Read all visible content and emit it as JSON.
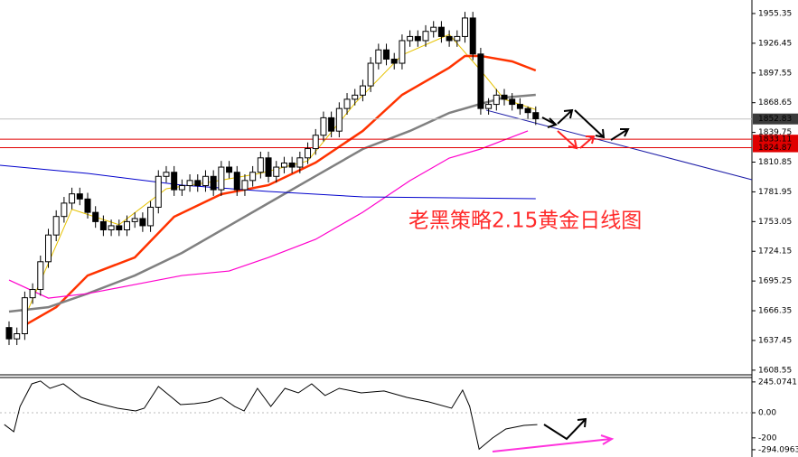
{
  "chart_data": [
    {
      "type": "candlestick",
      "xlim": [
        -1.15,
        94.5
      ],
      "ylim": [
        1605.8,
        1968.5
      ],
      "yticks": [
        1955.35,
        1926.45,
        1897.55,
        1868.65,
        1839.75,
        1810.85,
        1781.95,
        1753.05,
        1724.15,
        1695.25,
        1666.35,
        1637.45,
        1608.55
      ],
      "up_color": "#ffffff",
      "down_color": "#000000",
      "grid": false,
      "open": [
        1650,
        1639,
        1644,
        1679,
        1687,
        1714,
        1740,
        1758,
        1771,
        1780,
        1775,
        1762,
        1753,
        1745,
        1749,
        1745,
        1753,
        1756,
        1749,
        1767,
        1797,
        1801,
        1784,
        1788,
        1793,
        1788,
        1797,
        1784,
        1806,
        1801,
        1784,
        1793,
        1801,
        1815,
        1797,
        1806,
        1810,
        1806,
        1815,
        1824,
        1837,
        1854,
        1841,
        1863,
        1872,
        1876,
        1885,
        1907,
        1920,
        1911,
        1907,
        1929,
        1933,
        1929,
        1938,
        1942,
        1933,
        1929,
        1933,
        1951,
        1916,
        1863,
        1867,
        1876,
        1872,
        1867,
        1863,
        1859
      ],
      "high": [
        1656,
        1650,
        1685,
        1693,
        1720,
        1746,
        1764,
        1777,
        1786,
        1786,
        1781,
        1768,
        1759,
        1755,
        1755,
        1759,
        1762,
        1762,
        1773,
        1803,
        1807,
        1807,
        1794,
        1799,
        1799,
        1803,
        1803,
        1812,
        1812,
        1807,
        1799,
        1807,
        1821,
        1821,
        1812,
        1816,
        1816,
        1821,
        1830,
        1843,
        1860,
        1860,
        1869,
        1878,
        1882,
        1891,
        1913,
        1926,
        1926,
        1917,
        1935,
        1939,
        1939,
        1944,
        1948,
        1948,
        1939,
        1939,
        1957,
        1957,
        1922,
        1873,
        1882,
        1882,
        1878,
        1873,
        1865,
        1865
      ],
      "low": [
        1633,
        1633,
        1638,
        1673,
        1681,
        1708,
        1734,
        1752,
        1765,
        1769,
        1756,
        1747,
        1739,
        1739,
        1739,
        1739,
        1747,
        1743,
        1743,
        1761,
        1791,
        1778,
        1778,
        1782,
        1782,
        1782,
        1778,
        1778,
        1795,
        1778,
        1778,
        1787,
        1795,
        1791,
        1791,
        1800,
        1800,
        1800,
        1809,
        1818,
        1831,
        1835,
        1835,
        1857,
        1866,
        1870,
        1879,
        1901,
        1905,
        1901,
        1901,
        1923,
        1923,
        1923,
        1932,
        1927,
        1923,
        1923,
        1927,
        1910,
        1857,
        1857,
        1861,
        1866,
        1861,
        1857,
        1853,
        1847
      ],
      "close": [
        1639,
        1644,
        1679,
        1687,
        1714,
        1740,
        1758,
        1771,
        1780,
        1775,
        1762,
        1753,
        1745,
        1749,
        1745,
        1753,
        1756,
        1749,
        1767,
        1797,
        1801,
        1784,
        1788,
        1793,
        1788,
        1797,
        1784,
        1806,
        1801,
        1784,
        1793,
        1801,
        1815,
        1797,
        1806,
        1810,
        1806,
        1815,
        1824,
        1837,
        1854,
        1841,
        1863,
        1872,
        1876,
        1885,
        1907,
        1920,
        1911,
        1907,
        1929,
        1933,
        1929,
        1938,
        1942,
        1933,
        1929,
        1933,
        1951,
        1916,
        1863,
        1867,
        1876,
        1872,
        1867,
        1863,
        1859,
        1853
      ],
      "overlays": [
        {
          "color": "#e6c200",
          "width": 1,
          "x": [
            2,
            8,
            14,
            20,
            26,
            32,
            38,
            44,
            50,
            56,
            60,
            63,
            67
          ],
          "values": [
            1660,
            1765,
            1750,
            1785,
            1792,
            1800,
            1812,
            1868,
            1915,
            1935,
            1900,
            1872,
            1862
          ]
        },
        {
          "color": "#ff3300",
          "width": 2.5,
          "x": [
            2,
            6,
            10,
            16,
            21,
            27,
            33,
            39,
            45,
            50,
            56,
            58,
            60,
            64,
            67
          ],
          "values": [
            1652.3,
            1669.8,
            1700.6,
            1718.2,
            1757.7,
            1779.7,
            1788.5,
            1810.4,
            1841.2,
            1876.3,
            1902.7,
            1914.1,
            1914.1,
            1908.8,
            1900.0
          ]
        },
        {
          "color": "#808080",
          "width": 2.5,
          "x": [
            0,
            5,
            10,
            16,
            22,
            28,
            33,
            39,
            45,
            51,
            56,
            60,
            63,
            67
          ],
          "values": [
            1665.5,
            1669.8,
            1683.0,
            1700.6,
            1722.6,
            1749.0,
            1771.0,
            1797.3,
            1823.6,
            1841.2,
            1858.7,
            1867.5,
            1873.7,
            1876.3
          ]
        },
        {
          "color": "#ff00cc",
          "width": 1.2,
          "x": [
            0,
            5,
            10,
            16,
            22,
            28,
            33,
            39,
            45,
            51,
            56,
            60,
            63,
            66
          ],
          "values": [
            1696.2,
            1678.6,
            1683.0,
            1691.8,
            1700.6,
            1705.0,
            1718.2,
            1735.8,
            1762.1,
            1792.9,
            1814.8,
            1823.6,
            1832.4,
            1841.2
          ]
        },
        {
          "color": "#0000cc",
          "width": 1,
          "x": [
            -1.15,
            10,
            22,
            33,
            45,
            67
          ],
          "values": [
            1807.8,
            1799.9,
            1788.5,
            1782.3,
            1777.0,
            1775.3
          ]
        }
      ],
      "trendline": {
        "color": "#1a1aa6",
        "x": [
          60.7,
          94.5
        ],
        "values": [
          1861.4,
          1793.7
        ]
      },
      "current_price": {
        "value": 1852.83,
        "color": "#3a3a3a"
      },
      "levels": [
        {
          "value": 1833.11,
          "color": "#e00000"
        },
        {
          "value": 1824.87,
          "color": "#e00000"
        }
      ],
      "annotation": {
        "text": "老黑策略2.15黄金日线图",
        "color": "#ff2a2a"
      }
    },
    {
      "type": "line",
      "color": "#000000",
      "ylim": [
        -352,
        280
      ],
      "yticks": [
        245.0741,
        {
          "value": 0,
          "label": "0.00"
        },
        -200,
        -294.0963
      ],
      "x": [
        -0.6,
        0.6,
        1.4,
        2.9,
        4.0,
        5.2,
        6.9,
        9.2,
        11.5,
        13.8,
        16.1,
        17.2,
        19.0,
        20.7,
        21.8,
        23.6,
        25.3,
        27.0,
        28.7,
        29.9,
        31.6,
        33.3,
        35.1,
        36.8,
        38.5,
        40.2,
        42.0,
        44.8,
        47.7,
        50.6,
        53.4,
        56.3,
        57.7,
        58.6,
        59.8,
        61.5,
        63.2,
        65.5,
        67.2
      ],
      "values": [
        -94,
        -151,
        50,
        230,
        252,
        194,
        230,
        122,
        72,
        36,
        14,
        36,
        209,
        122,
        65,
        72,
        86,
        122,
        50,
        14,
        194,
        50,
        194,
        158,
        230,
        137,
        194,
        158,
        173,
        122,
        86,
        36,
        180,
        50,
        -290,
        -201,
        -129,
        -101,
        -94
      ]
    }
  ]
}
